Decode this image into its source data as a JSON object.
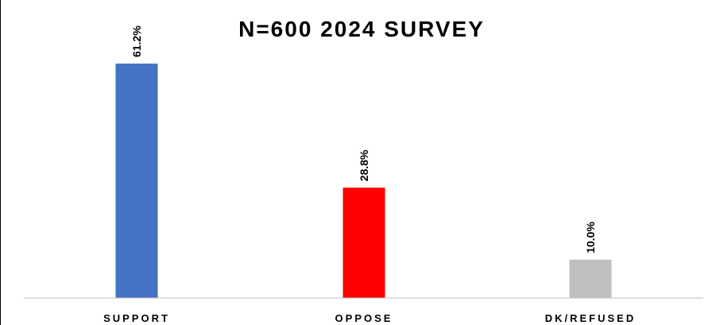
{
  "chart_data": {
    "type": "bar",
    "title": "N=600 2024 SURVEY",
    "categories": [
      "SUPPORT",
      "OPPOSE",
      "DK/REFUSED"
    ],
    "values": [
      61.2,
      28.8,
      10.0
    ],
    "value_labels": [
      "61.2%",
      "28.8%",
      "10.0%"
    ],
    "colors": [
      "#4472C4",
      "#FF0000",
      "#BFBFBF"
    ],
    "unit": "%",
    "ylim": [
      0,
      72
    ],
    "grid": false,
    "legend": "none"
  }
}
